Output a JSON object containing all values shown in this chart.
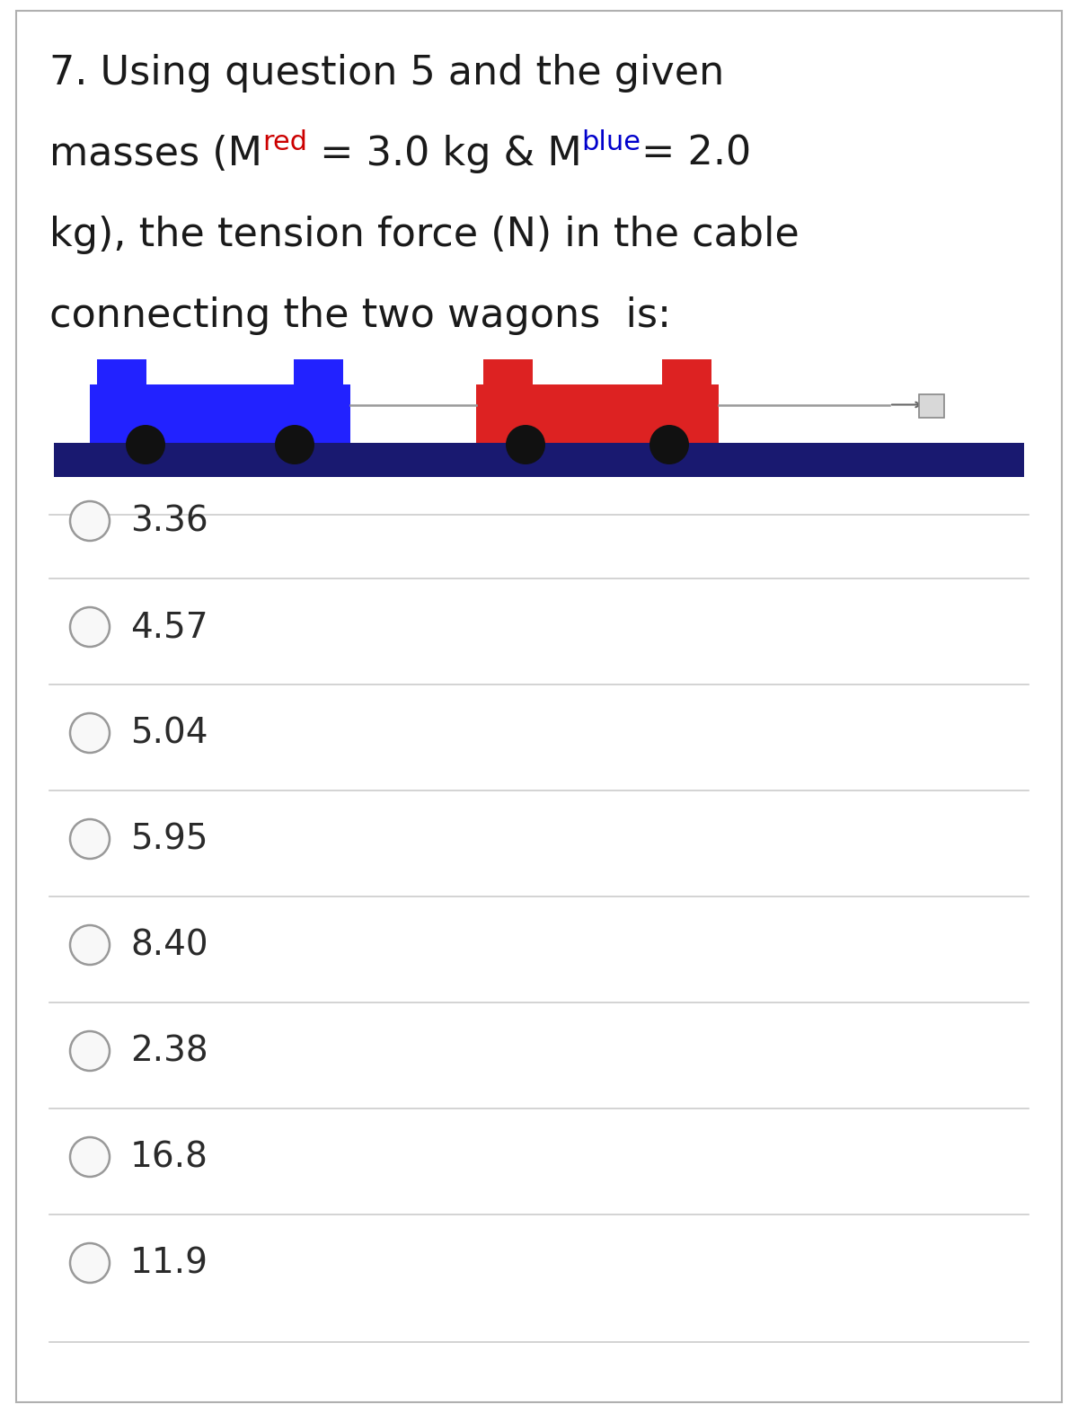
{
  "options": [
    "3.36",
    "4.57",
    "5.04",
    "5.95",
    "8.40",
    "2.38",
    "16.8",
    "11.9"
  ],
  "bg_color": "#ffffff",
  "border_color": "#b0b0b0",
  "text_color": "#1a1a1a",
  "option_text_color": "#2a2a2a",
  "circle_edge_color": "#999999",
  "circle_face_color": "#f8f8f8",
  "line_color": "#cccccc",
  "blue_wagon_color": "#2222ff",
  "red_wagon_color": "#dd2222",
  "track_color": "#191970",
  "wheel_color": "#111111",
  "cable_color": "#999999",
  "title_fontsize": 32,
  "option_fontsize": 28,
  "sub_fontsize": 22
}
